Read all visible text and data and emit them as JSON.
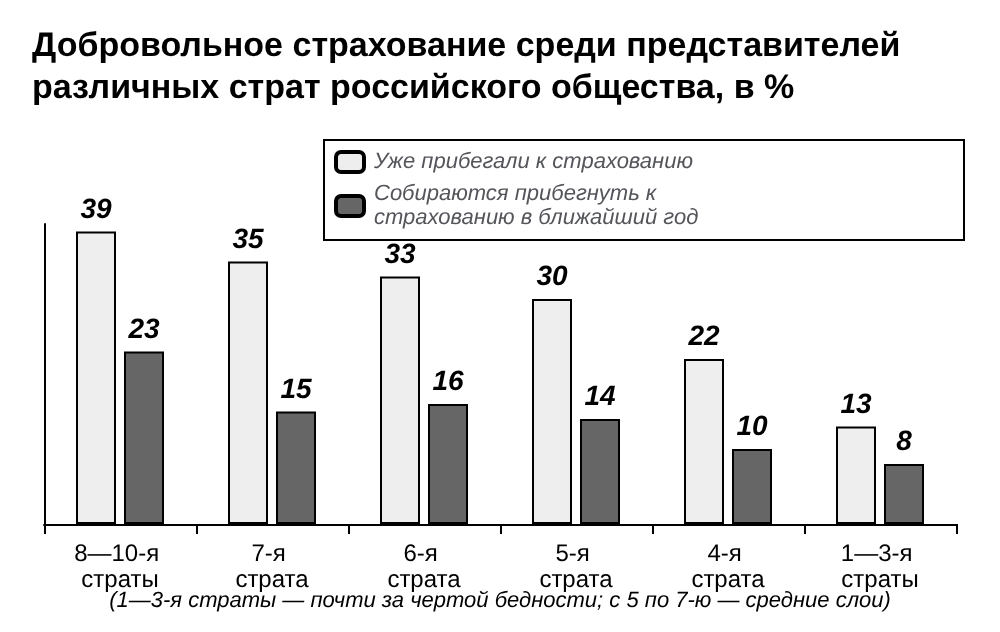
{
  "chart_data": {
    "type": "bar",
    "title": "Добровольное страхование среди представителей различных страт российского общества, в %",
    "categories": [
      "8—10-я страты",
      "7-я страта",
      "6-я страта",
      "5-я страта",
      "4-я страта",
      "1—3-я страты"
    ],
    "series": [
      {
        "name": "Уже прибегали к страхованию",
        "color": "#eeeeee",
        "values": [
          39,
          35,
          33,
          30,
          22,
          13
        ]
      },
      {
        "name": "Собираются прибегнуть к страхованию в ближайший год",
        "color": "#666666",
        "values": [
          23,
          15,
          16,
          14,
          10,
          8
        ]
      }
    ],
    "data_labels": true,
    "legend": "top right",
    "grid": false,
    "annotations": [
      "(1—3-я страты — почти за чертой бедности; с 5 по 7-ю — средние слои)"
    ]
  }
}
